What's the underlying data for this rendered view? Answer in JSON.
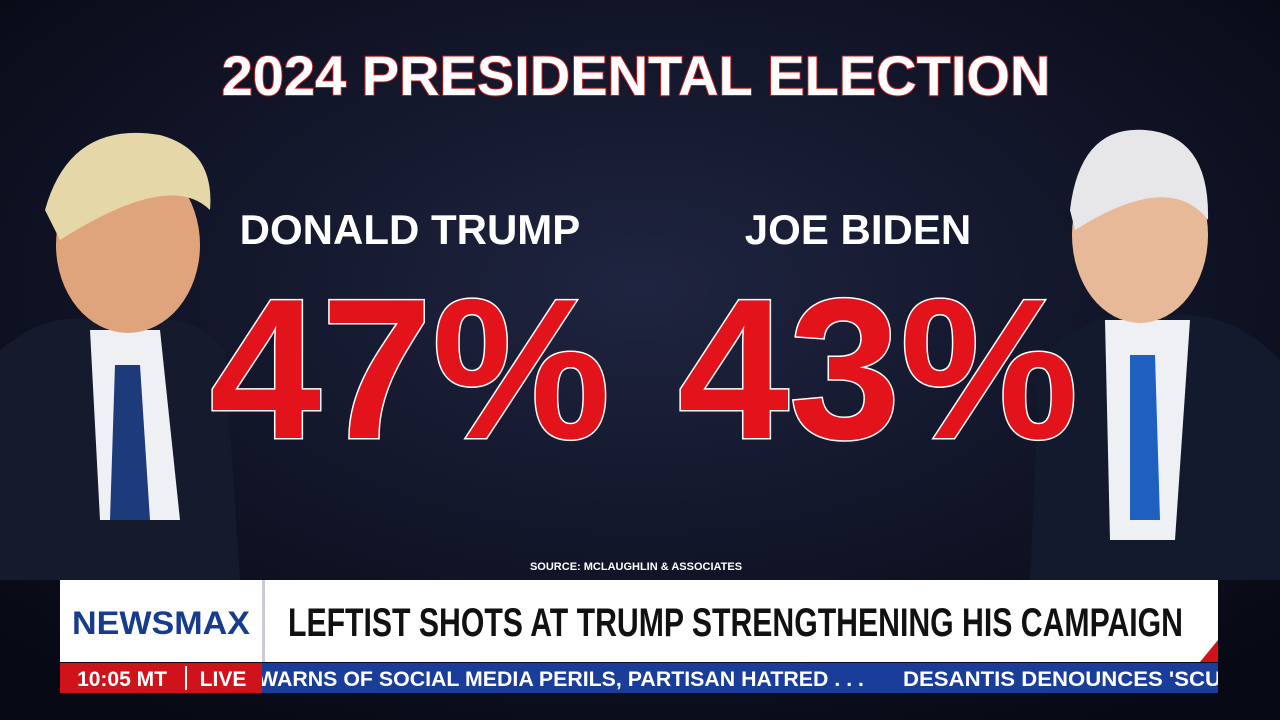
{
  "graphic": {
    "title": "2024 PRESIDENTAL ELECTION",
    "candidates": [
      {
        "name": "DONALD TRUMP",
        "result": "47%"
      },
      {
        "name": "JOE BIDEN",
        "result": "43%"
      }
    ],
    "source": "SOURCE: MCLAUGHLIN & ASSOCIATES"
  },
  "lower_third": {
    "logo": "NEWSMAX",
    "headline": "LEFTIST SHOTS AT TRUMP STRENGTHENING HIS CAMPAIGN",
    "time": "10:05 MT",
    "status": "LIVE",
    "ticker": [
      "WARNS OF SOCIAL MEDIA PERILS, PARTISAN HATRED . . .",
      "DESANTIS DENOUNCES 'SCU"
    ]
  }
}
